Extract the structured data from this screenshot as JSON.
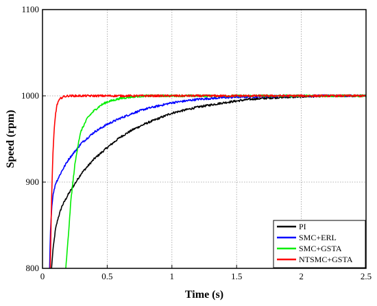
{
  "chart_data": {
    "type": "line",
    "xlabel": "Time (s)",
    "ylabel": "Speed (rpm)",
    "xlim": [
      0,
      2.5
    ],
    "ylim": [
      800,
      1100
    ],
    "xticks": [
      0,
      0.5,
      1,
      1.5,
      2,
      2.5
    ],
    "xtick_labels": [
      "0",
      "0.5",
      "1",
      "1.5",
      "2",
      "2.5"
    ],
    "yticks": [
      800,
      900,
      1000,
      1100
    ],
    "ytick_labels": [
      "800",
      "900",
      "1000",
      "1100"
    ],
    "grid": true,
    "legend_position": "bottom-right",
    "series": [
      {
        "name": "PI",
        "color": "#000000",
        "x": [
          0.07,
          0.08,
          0.1,
          0.12,
          0.15,
          0.2,
          0.25,
          0.3,
          0.4,
          0.5,
          0.6,
          0.7,
          0.8,
          1.0,
          1.2,
          1.4,
          1.6,
          1.8,
          2.0,
          2.2,
          2.5
        ],
        "y": [
          800,
          820,
          845,
          858,
          872,
          886,
          898,
          910,
          927,
          940,
          952,
          961,
          968,
          980,
          987,
          992,
          996,
          998,
          999,
          1000,
          1000
        ]
      },
      {
        "name": "SMC+ERL",
        "color": "#0000ff",
        "x": [
          0.055,
          0.06,
          0.07,
          0.08,
          0.1,
          0.15,
          0.2,
          0.3,
          0.4,
          0.5,
          0.6,
          0.7,
          0.8,
          1.0,
          1.2,
          1.4,
          1.6,
          2.0,
          2.5
        ],
        "y": [
          800,
          838,
          868,
          884,
          898,
          913,
          926,
          945,
          958,
          967,
          974,
          980,
          985,
          992,
          996,
          998,
          999,
          1000,
          1000
        ]
      },
      {
        "name": "SMC+GSTA",
        "color": "#00ee00",
        "x": [
          0.18,
          0.2,
          0.22,
          0.25,
          0.28,
          0.3,
          0.35,
          0.4,
          0.45,
          0.5,
          0.6,
          0.7,
          0.8,
          1.0,
          1.5,
          2.0,
          2.5
        ],
        "y": [
          800,
          838,
          880,
          920,
          948,
          960,
          975,
          983,
          989,
          993,
          997,
          999,
          1000,
          1000,
          1000,
          1000,
          1000
        ]
      },
      {
        "name": "NTSMC+GSTA",
        "color": "#ff0000",
        "x": [
          0.06,
          0.07,
          0.08,
          0.09,
          0.1,
          0.11,
          0.12,
          0.14,
          0.16,
          0.2,
          0.3,
          0.5,
          1.0,
          1.5,
          2.0,
          2.5
        ],
        "y": [
          800,
          880,
          930,
          960,
          978,
          988,
          993,
          997,
          999,
          1000,
          1000,
          1000,
          1000,
          1000,
          1000,
          1000
        ]
      }
    ]
  }
}
